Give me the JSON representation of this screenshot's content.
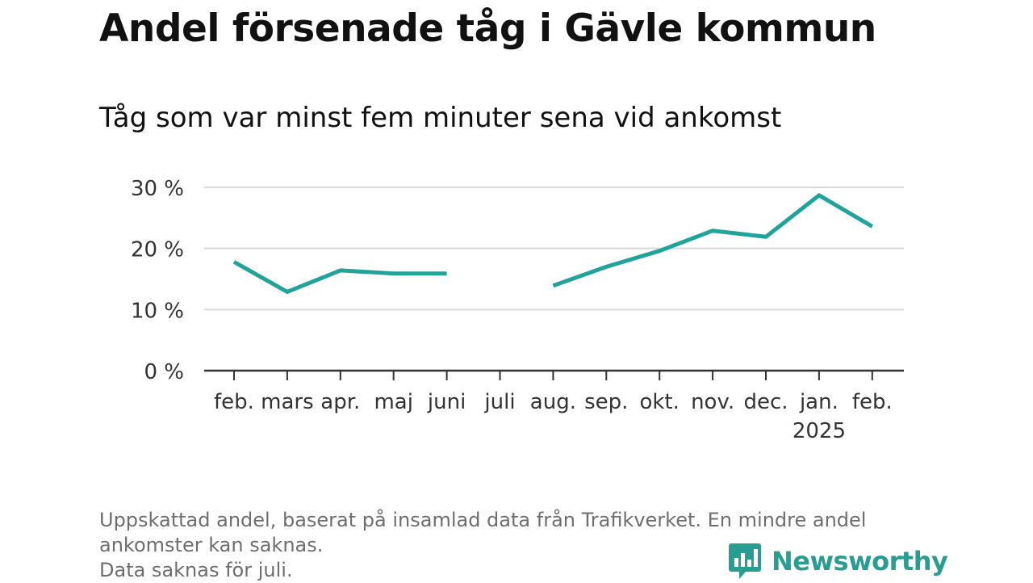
{
  "header": {
    "title": "Andel försenade tåg i Gävle kommun",
    "subtitle": "Tåg som var minst fem minuter sena vid ankomst"
  },
  "footer": {
    "note_lines": [
      "Uppskattad andel, baserat på insamlad data från Trafikverket. En mindre andel",
      "ankomster kan saknas.",
      "Data saknas för juli."
    ],
    "brand": "Newsworthy"
  },
  "colors": {
    "line": "#20a39a",
    "grid": "#d9d9d9",
    "axis": "#333333",
    "tick_text": "#333333",
    "note": "#6e6e6e",
    "brand": "#2a9d92"
  },
  "chart_data": {
    "type": "line",
    "title": "Andel försenade tåg i Gävle kommun",
    "subtitle": "Tåg som var minst fem minuter sena vid ankomst",
    "categories": [
      "feb.",
      "mars",
      "apr.",
      "maj",
      "juni",
      "juli",
      "aug.",
      "sep.",
      "okt.",
      "nov.",
      "dec.",
      "jan.",
      "feb."
    ],
    "category_sublabels": [
      "",
      "",
      "",
      "",
      "",
      "",
      "",
      "",
      "",
      "",
      "",
      "2025",
      ""
    ],
    "series": [
      {
        "values": [
          17.8,
          12.9,
          16.4,
          15.9,
          15.9,
          null,
          13.9,
          17.0,
          19.6,
          22.9,
          21.9,
          28.7,
          23.6
        ]
      }
    ],
    "yticks": [
      0,
      10,
      20,
      30
    ],
    "ytick_labels": [
      "0 %",
      "10 %",
      "20 %",
      "30 %"
    ],
    "ylim": [
      0,
      30
    ],
    "xlabel": "",
    "ylabel": "",
    "grid": true,
    "legend": "none",
    "missing_data_note": "Data saknas för juli."
  }
}
